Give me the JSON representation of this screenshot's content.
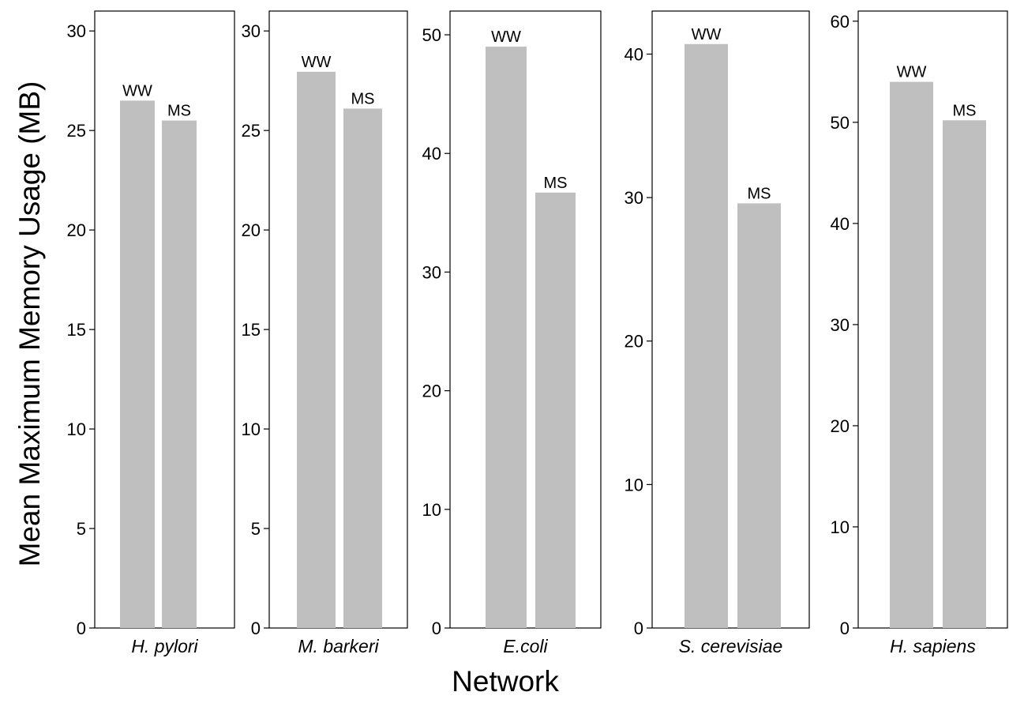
{
  "chart_data": {
    "type": "bar",
    "xlabel": "Network",
    "ylabel": "Mean Maximum Memory Usage (MB)",
    "grid": false,
    "legend": "none",
    "bar_color": "#bfbfbf",
    "panels": [
      {
        "name": "H. pylori",
        "categories": [
          "WW",
          "MS"
        ],
        "values": [
          26.5,
          25.5
        ],
        "ylim": [
          0,
          31
        ],
        "yticks": [
          0,
          5,
          10,
          15,
          20,
          25,
          30
        ]
      },
      {
        "name": "M. barkeri",
        "categories": [
          "WW",
          "MS"
        ],
        "values": [
          27.95,
          26.1
        ],
        "ylim": [
          0,
          31
        ],
        "yticks": [
          0,
          5,
          10,
          15,
          20,
          25,
          30
        ]
      },
      {
        "name": "E.coli",
        "categories": [
          "WW",
          "MS"
        ],
        "values": [
          49.0,
          36.7
        ],
        "ylim": [
          0,
          52
        ],
        "yticks": [
          0,
          10,
          20,
          30,
          40,
          50
        ]
      },
      {
        "name": "S. cerevisiae",
        "categories": [
          "WW",
          "MS"
        ],
        "values": [
          40.7,
          29.6
        ],
        "ylim": [
          0,
          43
        ],
        "yticks": [
          0,
          10,
          20,
          30,
          40
        ]
      },
      {
        "name": "H. sapiens",
        "categories": [
          "WW",
          "MS"
        ],
        "values": [
          54.0,
          50.2
        ],
        "ylim": [
          0,
          61
        ],
        "yticks": [
          0,
          10,
          20,
          30,
          40,
          50,
          60
        ]
      }
    ]
  }
}
